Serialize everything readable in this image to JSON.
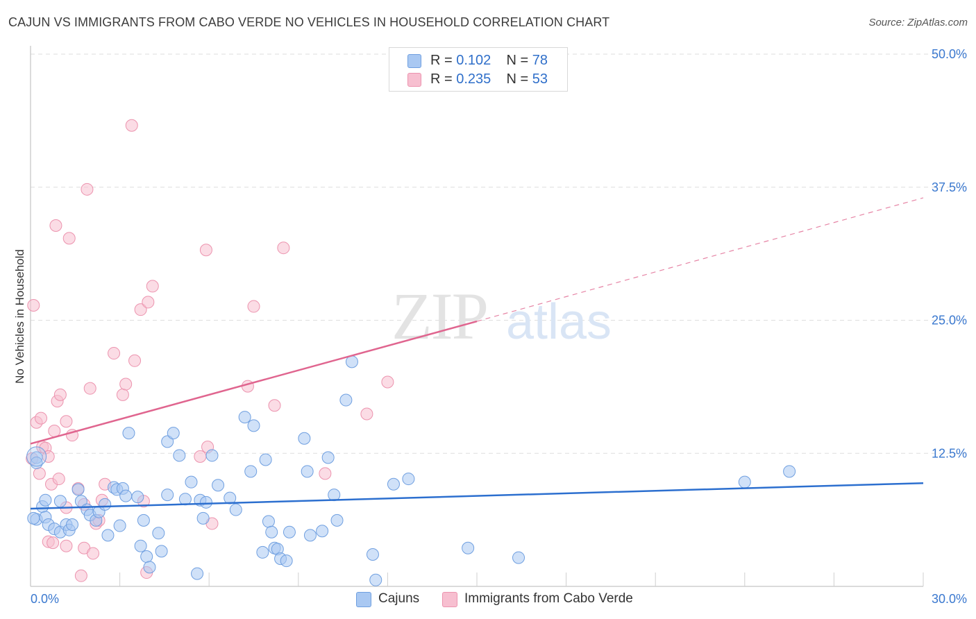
{
  "title": "CAJUN VS IMMIGRANTS FROM CABO VERDE NO VEHICLES IN HOUSEHOLD CORRELATION CHART",
  "source": "Source: ZipAtlas.com",
  "watermark": {
    "zip": "ZIP",
    "atlas": "atlas"
  },
  "legend": {
    "rows": [
      {
        "r_label": "R =",
        "r_value": "0.102",
        "n_label": "N =",
        "n_value": "78"
      },
      {
        "r_label": "R =",
        "r_value": "0.235",
        "n_label": "N =",
        "n_value": "53"
      }
    ]
  },
  "bottom_legend": [
    "Cajuns",
    "Immigrants from Cabo Verde"
  ],
  "colors": {
    "cajun_fill": "#a9c8f2",
    "cajun_stroke": "#6f9fe0",
    "cajun_line": "#2c6fcf",
    "cabo_fill": "#f7bfd0",
    "cabo_stroke": "#ec93ae",
    "cabo_line": "#e0658f",
    "tick_text": "#3a78cf",
    "grid": "#dedede"
  },
  "chart_data": {
    "type": "scatter",
    "title": "CAJUN VS IMMIGRANTS FROM CABO VERDE NO VEHICLES IN HOUSEHOLD CORRELATION CHART",
    "xlabel": "",
    "ylabel": "No Vehicles in Household",
    "xlim": [
      0,
      30
    ],
    "ylim": [
      0,
      50
    ],
    "x_tick_labels": [
      "0.0%",
      "30.0%"
    ],
    "y_tick_values": [
      12.5,
      25.0,
      37.5,
      50.0
    ],
    "y_tick_labels": [
      "12.5%",
      "25.0%",
      "37.5%",
      "50.0%"
    ],
    "grid": true,
    "legend_position": "top-center",
    "series": [
      {
        "name": "Cajuns",
        "r": 0.102,
        "n": 78,
        "trend": {
          "x": [
            0,
            30
          ],
          "y": [
            7.3,
            9.7
          ],
          "dashed_extension_to": null
        },
        "points": [
          [
            0.2,
            12.1
          ],
          [
            0.2,
            11.6
          ],
          [
            0.2,
            6.3
          ],
          [
            0.4,
            7.5
          ],
          [
            0.5,
            8.1
          ],
          [
            0.5,
            6.5
          ],
          [
            0.6,
            5.8
          ],
          [
            0.8,
            5.4
          ],
          [
            1.0,
            5.1
          ],
          [
            1.0,
            8.0
          ],
          [
            1.2,
            5.8
          ],
          [
            1.3,
            5.3
          ],
          [
            1.4,
            5.8
          ],
          [
            1.6,
            9.1
          ],
          [
            1.7,
            8.0
          ],
          [
            1.9,
            7.2
          ],
          [
            2.0,
            6.7
          ],
          [
            2.2,
            6.2
          ],
          [
            2.3,
            7.0
          ],
          [
            2.5,
            7.7
          ],
          [
            2.6,
            4.8
          ],
          [
            2.8,
            9.3
          ],
          [
            2.9,
            9.1
          ],
          [
            3.0,
            5.7
          ],
          [
            3.1,
            9.2
          ],
          [
            3.2,
            8.5
          ],
          [
            3.3,
            14.4
          ],
          [
            3.6,
            8.4
          ],
          [
            3.7,
            3.8
          ],
          [
            3.8,
            6.2
          ],
          [
            3.9,
            2.8
          ],
          [
            4.0,
            1.8
          ],
          [
            4.3,
            5.0
          ],
          [
            4.4,
            3.3
          ],
          [
            4.6,
            13.6
          ],
          [
            4.6,
            8.6
          ],
          [
            4.8,
            14.4
          ],
          [
            5.0,
            12.3
          ],
          [
            5.2,
            8.2
          ],
          [
            5.4,
            9.8
          ],
          [
            5.6,
            1.2
          ],
          [
            5.7,
            8.1
          ],
          [
            5.8,
            6.4
          ],
          [
            5.9,
            7.9
          ],
          [
            6.1,
            12.3
          ],
          [
            6.3,
            9.5
          ],
          [
            6.7,
            8.3
          ],
          [
            6.9,
            7.2
          ],
          [
            7.2,
            15.9
          ],
          [
            7.4,
            10.8
          ],
          [
            7.5,
            15.1
          ],
          [
            7.8,
            3.2
          ],
          [
            7.9,
            11.9
          ],
          [
            8.0,
            6.1
          ],
          [
            8.1,
            5.1
          ],
          [
            8.2,
            3.6
          ],
          [
            8.3,
            3.5
          ],
          [
            8.4,
            2.6
          ],
          [
            8.6,
            2.4
          ],
          [
            8.7,
            5.1
          ],
          [
            9.2,
            13.9
          ],
          [
            9.3,
            10.8
          ],
          [
            9.4,
            4.8
          ],
          [
            9.8,
            5.2
          ],
          [
            10.0,
            12.1
          ],
          [
            10.2,
            8.6
          ],
          [
            10.3,
            6.2
          ],
          [
            10.6,
            17.5
          ],
          [
            10.8,
            21.1
          ],
          [
            11.5,
            3.0
          ],
          [
            11.6,
            0.6
          ],
          [
            12.2,
            9.6
          ],
          [
            12.7,
            10.1
          ],
          [
            14.7,
            3.6
          ],
          [
            16.4,
            2.7
          ],
          [
            24.0,
            9.8
          ],
          [
            25.5,
            10.8
          ],
          [
            0.1,
            6.4
          ]
        ]
      },
      {
        "name": "Immigrants from Cabo Verde",
        "r": 0.235,
        "n": 53,
        "trend": {
          "x": [
            0,
            15
          ],
          "y": [
            13.4,
            24.9
          ],
          "dashed_extension_to": [
            30,
            36.5
          ]
        },
        "points": [
          [
            0.1,
            26.4
          ],
          [
            0.2,
            15.4
          ],
          [
            0.3,
            10.6
          ],
          [
            0.35,
            15.8
          ],
          [
            0.4,
            13.1
          ],
          [
            0.5,
            13.0
          ],
          [
            0.6,
            12.2
          ],
          [
            0.6,
            4.2
          ],
          [
            0.7,
            9.6
          ],
          [
            0.75,
            4.1
          ],
          [
            0.8,
            14.6
          ],
          [
            0.85,
            33.9
          ],
          [
            0.9,
            17.4
          ],
          [
            0.95,
            10.1
          ],
          [
            1.0,
            18.0
          ],
          [
            1.2,
            15.5
          ],
          [
            1.2,
            3.8
          ],
          [
            1.2,
            7.4
          ],
          [
            1.3,
            32.7
          ],
          [
            1.4,
            14.2
          ],
          [
            1.6,
            9.2
          ],
          [
            1.7,
            1.0
          ],
          [
            1.8,
            3.6
          ],
          [
            1.8,
            7.7
          ],
          [
            1.9,
            37.3
          ],
          [
            2.0,
            18.6
          ],
          [
            2.1,
            3.1
          ],
          [
            2.2,
            5.9
          ],
          [
            2.4,
            8.1
          ],
          [
            2.5,
            9.6
          ],
          [
            2.8,
            21.9
          ],
          [
            3.1,
            18.0
          ],
          [
            3.2,
            19.0
          ],
          [
            3.4,
            43.3
          ],
          [
            3.5,
            21.2
          ],
          [
            3.7,
            26.0
          ],
          [
            3.8,
            8.0
          ],
          [
            3.9,
            1.3
          ],
          [
            3.95,
            26.7
          ],
          [
            4.1,
            28.2
          ],
          [
            5.7,
            12.2
          ],
          [
            5.9,
            31.6
          ],
          [
            5.95,
            13.1
          ],
          [
            6.1,
            5.9
          ],
          [
            7.3,
            18.8
          ],
          [
            7.5,
            26.3
          ],
          [
            8.2,
            17.0
          ],
          [
            8.5,
            31.8
          ],
          [
            9.9,
            10.6
          ],
          [
            11.3,
            16.2
          ],
          [
            12.0,
            19.2
          ],
          [
            0.05,
            12.0
          ],
          [
            2.3,
            6.2
          ]
        ]
      }
    ]
  }
}
